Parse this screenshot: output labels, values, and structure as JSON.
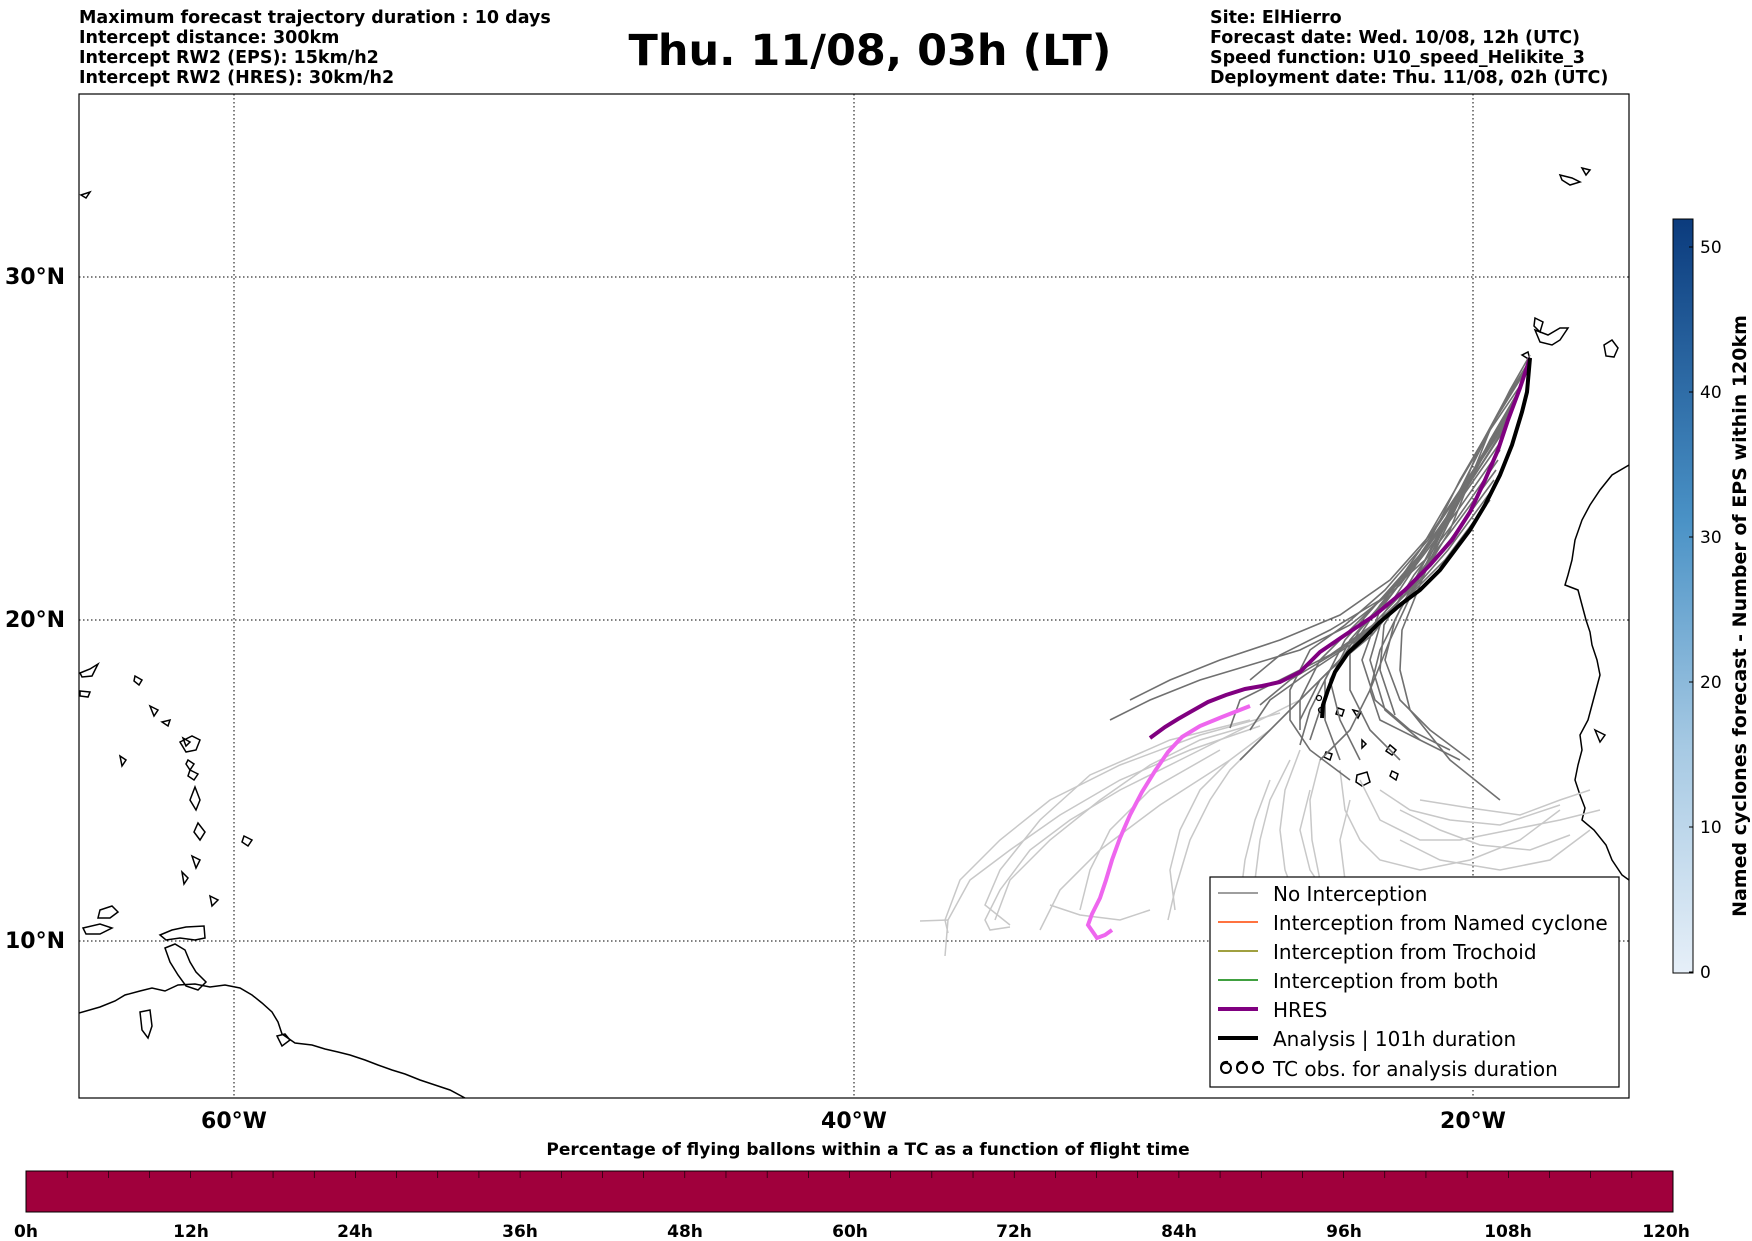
{
  "header": {
    "title": "Thu. 11/08, 03h (LT)",
    "left_lines": [
      "Maximum forecast trajectory duration : 10 days",
      "Intercept distance: 300km",
      "Intercept RW2 (EPS):  15km/h2",
      "Intercept RW2 (HRES): 30km/h2"
    ],
    "right_lines": [
      "Site: ElHierro",
      "Forecast date: Wed. 10/08, 12h (UTC)",
      "Speed function: U10_speed_Helikite_3",
      "Deployment date: Thu. 11/08, 02h (UTC)"
    ]
  },
  "map": {
    "lat_labels": [
      "30°N",
      "20°N",
      "10°N"
    ],
    "lon_labels": [
      "60°W",
      "40°W",
      "20°W"
    ]
  },
  "legend": {
    "items": [
      {
        "label": "No Interception",
        "color": "#7f7f7f",
        "style": "thin"
      },
      {
        "label": "Interception from Named cyclone",
        "color": "#ff4500",
        "style": "thin"
      },
      {
        "label": "Interception from Trochoid",
        "color": "#808000",
        "style": "thin"
      },
      {
        "label": "Interception from both",
        "color": "#008000",
        "style": "thin"
      },
      {
        "label": "HRES",
        "color": "#800080",
        "style": "thick"
      },
      {
        "label": "Analysis | 101h duration",
        "color": "#000000",
        "style": "thick"
      },
      {
        "label": "TC obs. for analysis duration",
        "color": "#000000",
        "style": "symbol"
      }
    ]
  },
  "colorbar": {
    "label": "Named cyclones forecast - Number of EPS within 120km",
    "ticks": [
      "0",
      "10",
      "20",
      "30",
      "40",
      "50"
    ],
    "min": 0,
    "max": 52
  },
  "bottom_bar": {
    "title": "Percentage of flying ballons within a TC as a function of flight time",
    "ticks": [
      "0h",
      "12h",
      "24h",
      "36h",
      "48h",
      "60h",
      "72h",
      "84h",
      "96h",
      "108h",
      "120h"
    ],
    "fill_color": "#a0003c"
  }
}
